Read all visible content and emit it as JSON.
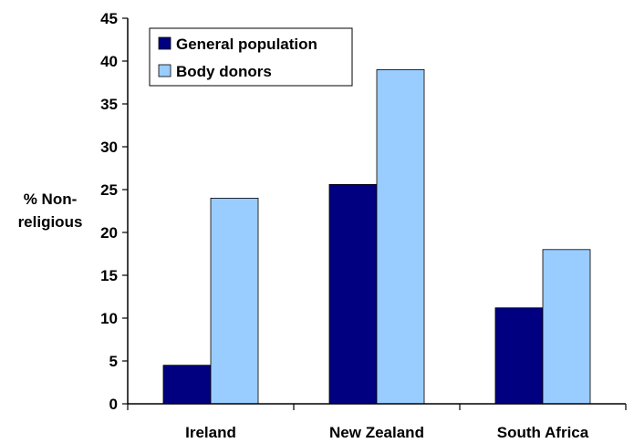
{
  "chart_data": {
    "type": "bar",
    "title": "",
    "xlabel": "",
    "ylabel": [
      "% Non-",
      "religious"
    ],
    "categories": [
      "Ireland",
      "New Zealand",
      "South Africa"
    ],
    "series": [
      {
        "name": "General population",
        "values": [
          4.5,
          25.6,
          11.2
        ],
        "color": "#000080"
      },
      {
        "name": "Body donors",
        "values": [
          24,
          39,
          18
        ],
        "color": "#99ccff"
      }
    ],
    "ylim": [
      0,
      45
    ],
    "yticks": [
      0,
      5,
      10,
      15,
      20,
      25,
      30,
      35,
      40,
      45
    ],
    "grid": false,
    "legend_position": "top-left"
  }
}
